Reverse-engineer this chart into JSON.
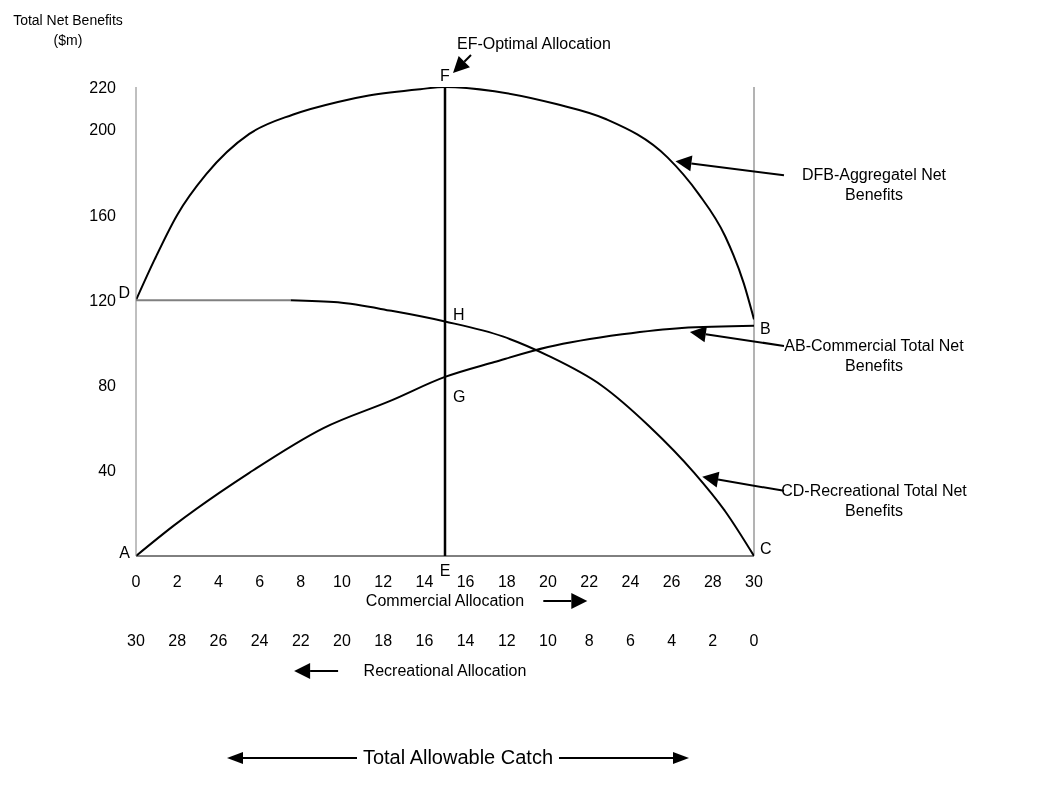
{
  "chart_data": {
    "type": "line",
    "ylabel": "Total Net Benefits ($m)",
    "xlabel": "Commercial Allocation",
    "x2label": "Recreational Allocation",
    "xlim": [
      0,
      30
    ],
    "xticks": [
      0,
      2,
      4,
      6,
      8,
      10,
      12,
      14,
      16,
      18,
      20,
      22,
      24,
      26,
      28,
      30
    ],
    "x2lim": [
      30,
      0
    ],
    "x2ticks": [
      30,
      28,
      26,
      24,
      22,
      20,
      18,
      16,
      14,
      12,
      10,
      8,
      6,
      4,
      2,
      0
    ],
    "ylim": [
      0,
      220
    ],
    "yticks": [
      40,
      80,
      120,
      160,
      200,
      220
    ],
    "series": [
      {
        "name": "DFB-Aggregatel Net Benefits",
        "color": "#000000",
        "x": [
          0,
          0.9,
          2,
          3.4,
          5.5,
          7.6,
          9.8,
          11.3,
          13.8,
          15,
          17.4,
          20.4,
          22.8,
          25.8,
          27.3,
          28.6,
          29.5,
          30
        ],
        "values": [
          120,
          139,
          160,
          179,
          198,
          207,
          213,
          216,
          219,
          220,
          218,
          212,
          205,
          187,
          170,
          150,
          128,
          111
        ]
      },
      {
        "name": "AB-Commercial Total Net Benefits",
        "color": "#000000",
        "x": [
          0,
          1.8,
          5.5,
          9.1,
          12.4,
          15,
          17.4,
          20,
          23.6,
          26.5,
          30
        ],
        "values": [
          0,
          14,
          39,
          60,
          73,
          84,
          91,
          98,
          104,
          107,
          108
        ]
      },
      {
        "name": "CD-Recreational Total Net Benefits",
        "color": "#000000",
        "x": [
          7.5,
          9.8,
          12.4,
          15,
          17.8,
          20,
          22.6,
          24.9,
          27.1,
          28.6,
          30
        ],
        "values": [
          120,
          119,
          115,
          110,
          103,
          94,
          80,
          61,
          39,
          21,
          0
        ]
      },
      {
        "color": "#808080",
        "x": [
          0,
          7.5
        ],
        "values": [
          120,
          120
        ]
      }
    ],
    "ref_lines": [
      {
        "axis": "x",
        "value": 15,
        "color": "#000000",
        "label": "EF-Optimal Allocation"
      },
      {
        "axis": "x",
        "value": 30,
        "color": "#808080"
      }
    ],
    "annotations": [
      {
        "text": "A",
        "x": 0,
        "y": 0
      },
      {
        "text": "B",
        "x": 30,
        "y": 108
      },
      {
        "text": "C",
        "x": 30,
        "y": 0
      },
      {
        "text": "D",
        "x": 0,
        "y": 120
      },
      {
        "text": "E",
        "x": 15,
        "y": 0
      },
      {
        "text": "F",
        "x": 15,
        "y": 220
      },
      {
        "text": "G",
        "x": 15,
        "y": 84
      },
      {
        "text": "H",
        "x": 15,
        "y": 110
      },
      "Total Allowable Catch"
    ],
    "grid": false,
    "legend": "right",
    "marker": "none",
    "line_style": "solid"
  }
}
